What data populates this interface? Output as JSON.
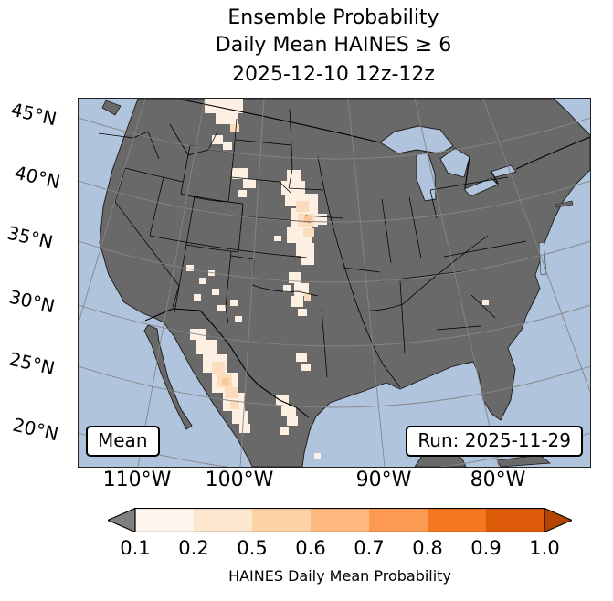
{
  "title": {
    "line1": "Ensemble Probability",
    "line2": "Daily Mean HAINES ≥ 6",
    "line3": "2025-12-10 12z-12z"
  },
  "map": {
    "mean_label": "Mean",
    "run_label": "Run: 2025-11-29"
  },
  "axes": {
    "lat_labels": [
      "45°N",
      "40°N",
      "35°N",
      "30°N",
      "25°N",
      "20°N"
    ],
    "lon_labels": [
      "110°W",
      "100°W",
      "90°W",
      "80°W"
    ]
  },
  "colorbar": {
    "label": "HAINES Daily Mean Probability",
    "tick_labels": [
      "0.1",
      "0.2",
      "0.5",
      "0.6",
      "0.7",
      "0.8",
      "0.9",
      "1.0"
    ],
    "segment_colors": [
      "#fef6ee",
      "#fde7cf",
      "#fdd2a7",
      "#fdb97e",
      "#fd9a52",
      "#f47920",
      "#dd5a09"
    ],
    "under_color": "#7f7f7f",
    "over_color": "#b54403"
  },
  "colors": {
    "ocean": "#b0c4de",
    "land": "#696969",
    "graticule": "#858585",
    "p1": "#fdf0e2",
    "p2": "#fbddbd",
    "p3": "#f8c795"
  },
  "chart_data": {
    "type": "heatmap",
    "subtype": "geographic-probability-map",
    "title": [
      "Ensemble Probability",
      "Daily Mean HAINES ≥ 6",
      "2025-12-10 12z-12z"
    ],
    "variable": "HAINES Daily Mean Probability",
    "valid_period": "2025-12-10 12z-12z",
    "model_run": "2025-11-29",
    "statistic": "Mean",
    "region": "Continental United States with southern Canada and Mexico",
    "lat_ticks_deg_n": [
      45,
      40,
      35,
      30,
      25,
      20
    ],
    "lon_ticks_deg_w": [
      110,
      100,
      90,
      80
    ],
    "colorbar": {
      "ticks": [
        0.1,
        0.2,
        0.5,
        0.6,
        0.7,
        0.8,
        0.9,
        1.0
      ],
      "colors": [
        "#fef6ee",
        "#fde7cf",
        "#fdd2a7",
        "#fdb97e",
        "#fd9a52",
        "#f47920",
        "#dd5a09"
      ],
      "under": "#7f7f7f",
      "over": "#b54403",
      "extend": "both",
      "label": "HAINES Daily Mean Probability"
    },
    "shaded_regions": [
      {
        "area": "Canadian Prairies at top edge (north of Montana)",
        "probability_range": "0.1–0.2"
      },
      {
        "area": "Central Montana / northern Wyoming scattered cells",
        "probability_range": "0.1–0.2"
      },
      {
        "area": "Western Dakotas–Nebraska–Kansas plains corridor",
        "probability_range": "0.1–0.5, small core 0.5–0.6"
      },
      {
        "area": "Eastern New Mexico / West Texas",
        "probability_range": "0.1–0.2"
      },
      {
        "area": "Arizona–New Mexico scattered cells",
        "probability_range": "0.1–0.2"
      },
      {
        "area": "Sierra Madre Occidental, northwest Mexico",
        "probability_range": "0.1–0.5, small core 0.5–0.6"
      },
      {
        "area": "Northeast Mexico smaller cluster",
        "probability_range": "0.1–0.2"
      },
      {
        "area": "Remainder of map",
        "probability_range": "< 0.1 (unshaded gray land)"
      }
    ]
  }
}
